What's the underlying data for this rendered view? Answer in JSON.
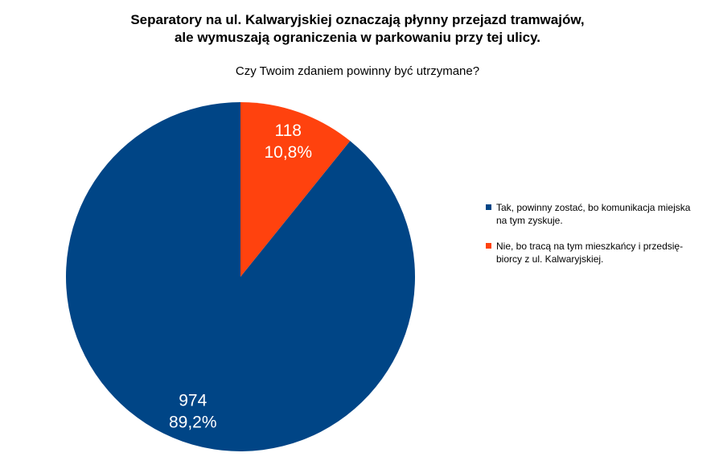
{
  "chart_data": {
    "type": "pie",
    "title": "Separatory na ul. Kalwaryjskiej oznaczają płynny przejazd tramwajów,\nale wymuszają ograniczenia w parkowaniu przy tej ulicy.",
    "subtitle": "Czy Twoim zdaniem powinny być utrzymane?",
    "categories": [
      "Tak, powinny zostać, bo komunikacja miejska na tym zyskuje.",
      "Nie, bo tracą na tym mieszkańcy i przedsię-biorcy z ul. Kalwaryjskiej."
    ],
    "values": [
      974,
      118
    ],
    "percent_labels": [
      "89,2%",
      "10,8%"
    ],
    "colors": [
      "#004586",
      "#ff420e"
    ],
    "legend": "right"
  }
}
